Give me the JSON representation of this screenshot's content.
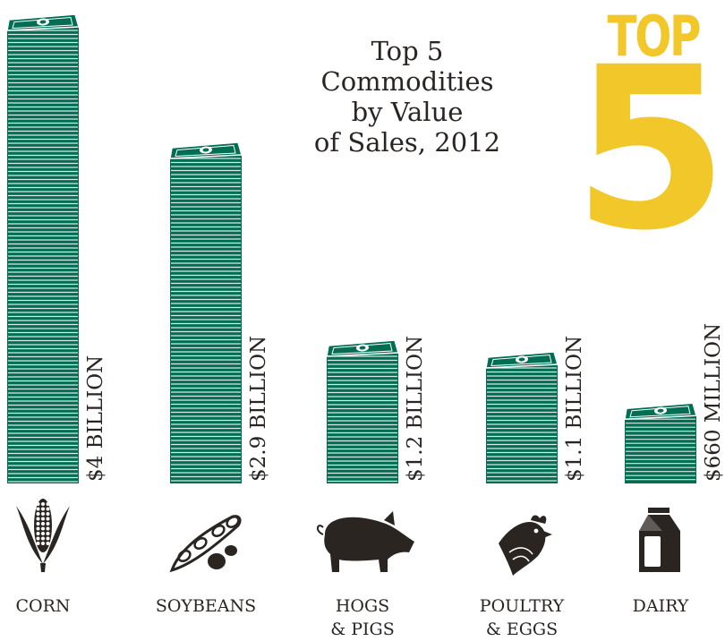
{
  "title_lines": [
    "Top 5",
    "Commodities",
    "by Value",
    "of Sales, 2012"
  ],
  "badge": {
    "top": "TOP",
    "number": "5",
    "color": "#f2c72a"
  },
  "colors": {
    "money": "#006e52",
    "money_stripe": "#ffffff",
    "icon": "#2b2522"
  },
  "chart_data": {
    "type": "bar",
    "title": "Top 5 Commodities by Value of Sales, 2012",
    "unit": "USD",
    "categories": [
      "CORN",
      "SOYBEANS",
      "HOGS & PIGS",
      "POULTRY & EGGS",
      "DAIRY"
    ],
    "category_lines": [
      [
        "CORN"
      ],
      [
        "SOYBEANS"
      ],
      [
        "HOGS",
        "& PIGS"
      ],
      [
        "POULTRY",
        "& EGGS"
      ],
      [
        "DAIRY"
      ]
    ],
    "values": [
      4.0,
      2.9,
      1.2,
      1.1,
      0.66
    ],
    "value_labels": [
      "$4 BILLION",
      "$2.9 BILLION",
      "$1.2 BILLION",
      "$1.1 BILLION",
      "$660 MILLION"
    ],
    "icons": [
      "corn-icon",
      "soybean-icon",
      "pig-icon",
      "chicken-icon",
      "milk-carton-icon"
    ],
    "bar_style": "stacked dollar bills"
  }
}
